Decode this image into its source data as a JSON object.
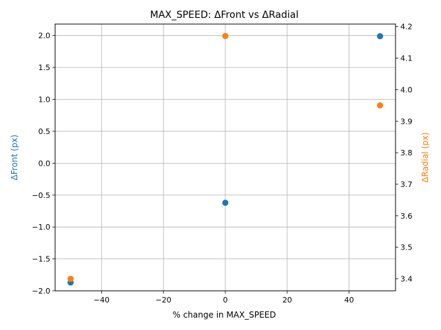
{
  "chart_data": {
    "type": "scatter",
    "title": "MAX_SPEED: ΔFront vs ΔRadial",
    "xlabel": "% change in MAX_SPEED",
    "xlim": [
      -55,
      55
    ],
    "xticks": [
      -40,
      -20,
      0,
      20,
      40
    ],
    "grid": true,
    "series": [
      {
        "axis": "left",
        "color": "#1f77b4",
        "x": [
          -50,
          0,
          50
        ],
        "y": [
          -1.87,
          -0.62,
          1.99
        ]
      },
      {
        "axis": "right",
        "color": "#ff7f0e",
        "x": [
          -50,
          0,
          50
        ],
        "y": [
          3.4,
          4.17,
          3.95
        ]
      }
    ],
    "y_left": {
      "label": "ΔFront (px)",
      "color": "#1f77b4",
      "ylim": [
        -2.0,
        2.18
      ],
      "ticks": [
        -2.0,
        -1.5,
        -1.0,
        -0.5,
        0.0,
        0.5,
        1.0,
        1.5,
        2.0
      ]
    },
    "y_right": {
      "label": "ΔRadial (px)",
      "color": "#ff7f0e",
      "ylim": [
        3.362,
        4.208
      ],
      "ticks": [
        3.4,
        3.5,
        3.6,
        3.7,
        3.8,
        3.9,
        4.0,
        4.1,
        4.2
      ]
    }
  }
}
